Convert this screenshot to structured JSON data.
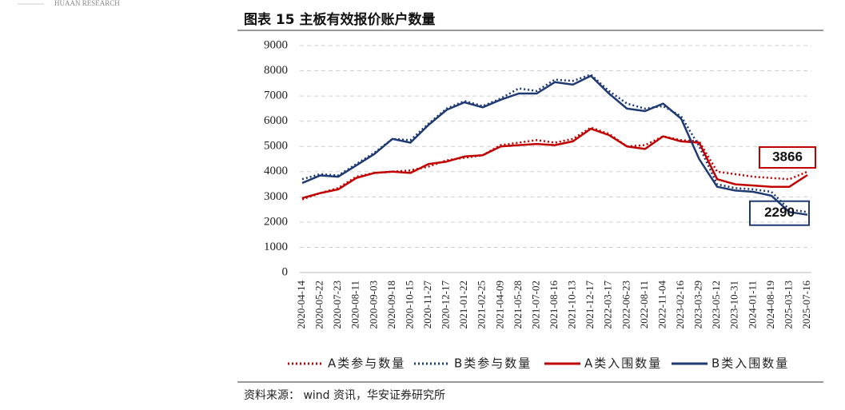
{
  "header": "HUAAN RESEARCH",
  "source": "资料来源： wind 资讯，华安证券研究所",
  "chart_data": {
    "type": "line",
    "title": "图表 15 主板有效报价账户数量",
    "categories": [
      "2020-04-14",
      "2020-05-22",
      "2020-07-23",
      "2020-08-11",
      "2020-09-03",
      "2020-09-18",
      "2020-10-15",
      "2020-11-27",
      "2020-12-17",
      "2021-01-22",
      "2021-02-25",
      "2021-04-09",
      "2021-05-28",
      "2021-07-02",
      "2021-08-16",
      "2021-10-13",
      "2021-12-17",
      "2022-03-17",
      "2022-06-23",
      "2022-08-11",
      "2022-11-04",
      "2023-02-16",
      "2023-03-29",
      "2023-05-12",
      "2023-10-31",
      "2024-01-11",
      "2024-08-19",
      "2025-03-13",
      "2025-07-16"
    ],
    "series": [
      {
        "name": "A类参与数量",
        "color": "#c00000",
        "dash": true,
        "values": [
          2900,
          3150,
          3350,
          3800,
          3950,
          4000,
          4050,
          4200,
          4450,
          4550,
          4650,
          5050,
          5150,
          5250,
          5150,
          5300,
          5750,
          5500,
          5000,
          5050,
          5400,
          5250,
          5200,
          4000,
          3900,
          3800,
          3750,
          3700,
          4000
        ]
      },
      {
        "name": "B类参与数量",
        "color": "#1f3a73",
        "dash": true,
        "values": [
          3700,
          3900,
          3850,
          4300,
          4750,
          5300,
          5250,
          5900,
          6500,
          6800,
          6600,
          6900,
          7300,
          7200,
          7650,
          7600,
          7850,
          7200,
          6700,
          6500,
          6600,
          6200,
          5000,
          3500,
          3350,
          3300,
          3200,
          2500,
          2400
        ]
      },
      {
        "name": "A类入围数量",
        "color": "#c00000",
        "dash": false,
        "label_last": true,
        "values": [
          2950,
          3150,
          3300,
          3750,
          3950,
          4000,
          3950,
          4300,
          4400,
          4600,
          4650,
          5000,
          5050,
          5100,
          5050,
          5200,
          5700,
          5450,
          5000,
          4900,
          5400,
          5200,
          5150,
          3700,
          3500,
          3450,
          3400,
          3400,
          3866
        ]
      },
      {
        "name": "B类入围数量",
        "color": "#1f3a73",
        "dash": false,
        "label_last": true,
        "values": [
          3550,
          3850,
          3800,
          4250,
          4700,
          5300,
          5150,
          5850,
          6450,
          6750,
          6550,
          6850,
          7100,
          7100,
          7550,
          7450,
          7800,
          7100,
          6500,
          6400,
          6700,
          6100,
          4500,
          3400,
          3250,
          3200,
          3050,
          2400,
          2290
        ]
      }
    ],
    "ylim": [
      0,
      9000
    ],
    "yticks": [
      0,
      1000,
      2000,
      3000,
      4000,
      5000,
      6000,
      7000,
      8000,
      9000
    ],
    "grid": true
  }
}
